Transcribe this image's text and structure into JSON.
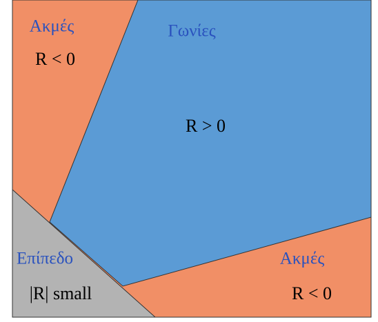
{
  "regions": [
    {
      "label": "Ακμές",
      "formula": "R < 0"
    },
    {
      "label": "Γωνίες",
      "formula": "R > 0"
    },
    {
      "label": "Επίπεδο",
      "formula": "|R| small"
    },
    {
      "label": "Ακμές",
      "formula": "R < 0"
    }
  ]
}
